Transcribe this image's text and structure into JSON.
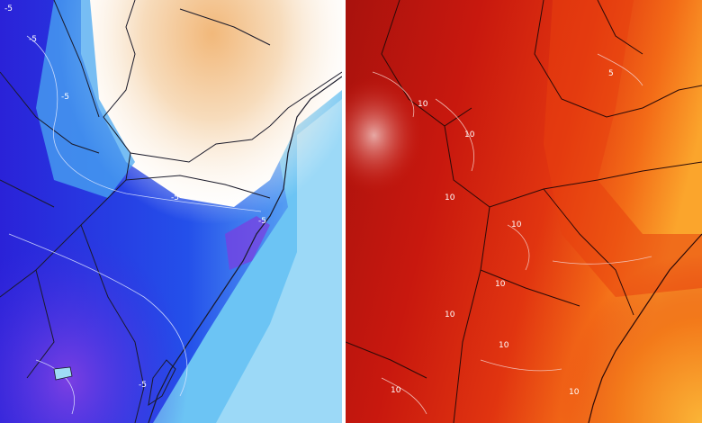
{
  "panels": [
    {
      "name": "temperature-anomaly-left",
      "colors": {
        "dark": "#2a1fd6",
        "mid": "#1f5ff0",
        "light": "#59b8f5",
        "pale": "#c9ecfb",
        "white": "#ffffff",
        "warm": "#f3c48e",
        "purple": "#7a3fe0"
      },
      "labels": [
        "-5",
        "-5",
        "-5",
        "-5",
        "-5",
        "-5"
      ]
    },
    {
      "name": "temperature-anomaly-right",
      "colors": {
        "dark": "#b0140f",
        "mid": "#d8230e",
        "bright": "#f04a12",
        "orange": "#f7821b",
        "yellow": "#fbb537",
        "pale": "#d98a8a"
      },
      "labels": [
        "10",
        "10",
        "10",
        "10",
        "10",
        "10",
        "10",
        "10",
        "10",
        "5"
      ]
    }
  ]
}
